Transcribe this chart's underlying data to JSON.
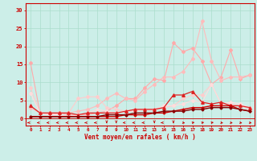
{
  "x": [
    0,
    1,
    2,
    3,
    4,
    5,
    6,
    7,
    8,
    9,
    10,
    11,
    12,
    13,
    14,
    15,
    16,
    17,
    18,
    19,
    20,
    21,
    22,
    23
  ],
  "background_color": "#cceee8",
  "grid_color": "#aaddcc",
  "xlabel": "Vent moyen/en rafales ( km/h )",
  "xlabel_color": "#cc0000",
  "tick_color": "#cc0000",
  "ylim": [
    -2,
    32
  ],
  "xlim": [
    -0.5,
    23.5
  ],
  "series": [
    {
      "y": [
        15.5,
        1.5,
        1.5,
        1.5,
        1.0,
        1.0,
        1.0,
        1.5,
        2.0,
        3.5,
        5.5,
        5.5,
        8.5,
        11.0,
        10.5,
        21.0,
        18.5,
        19.5,
        16.0,
        9.5,
        11.5,
        19.0,
        11.0,
        12.0
      ],
      "color": "#ffaaaa",
      "linewidth": 0.8,
      "marker": "D",
      "markersize": 2.0
    },
    {
      "y": [
        3.0,
        1.5,
        1.0,
        1.5,
        1.5,
        2.0,
        2.5,
        3.5,
        5.5,
        7.0,
        5.5,
        5.0,
        7.5,
        9.5,
        11.5,
        11.5,
        13.0,
        16.5,
        27.0,
        16.0,
        10.5,
        11.5,
        11.5,
        12.0
      ],
      "color": "#ffbbbb",
      "linewidth": 0.8,
      "marker": "D",
      "markersize": 2.0
    },
    {
      "y": [
        8.5,
        1.5,
        1.0,
        1.5,
        1.5,
        5.5,
        6.0,
        6.0,
        3.0,
        2.5,
        2.0,
        2.5,
        2.5,
        2.5,
        3.0,
        3.5,
        5.5,
        6.5,
        6.5,
        9.5,
        4.0,
        4.0,
        3.5,
        2.5
      ],
      "color": "#ffcccc",
      "linewidth": 0.8,
      "marker": "D",
      "markersize": 2.0
    },
    {
      "y": [
        7.0,
        1.5,
        1.0,
        1.0,
        0.5,
        1.0,
        1.5,
        2.5,
        2.0,
        1.5,
        2.0,
        2.0,
        2.5,
        2.5,
        3.5,
        3.5,
        4.0,
        5.0,
        4.5,
        9.5,
        4.0,
        4.5,
        4.0,
        3.0
      ],
      "color": "#ffdddd",
      "linewidth": 0.8,
      "marker": "D",
      "markersize": 2.0
    },
    {
      "y": [
        3.5,
        1.5,
        1.5,
        1.5,
        1.5,
        1.0,
        1.5,
        1.5,
        1.5,
        1.5,
        2.0,
        2.5,
        2.5,
        2.5,
        3.0,
        6.5,
        6.5,
        7.5,
        4.5,
        4.0,
        4.5,
        3.5,
        3.5,
        3.0
      ],
      "color": "#dd2222",
      "linewidth": 0.9,
      "marker": "^",
      "markersize": 2.5
    },
    {
      "y": [
        0.5,
        0.5,
        0.5,
        0.5,
        0.5,
        0.5,
        0.5,
        0.5,
        0.5,
        0.5,
        1.0,
        1.0,
        1.0,
        1.5,
        1.5,
        2.0,
        2.5,
        3.0,
        3.0,
        3.5,
        3.5,
        3.5,
        2.5,
        2.0
      ],
      "color": "#cc0000",
      "linewidth": 1.0,
      "marker": "D",
      "markersize": 1.5
    },
    {
      "y": [
        0.5,
        0.5,
        0.5,
        0.5,
        0.5,
        0.5,
        0.5,
        0.5,
        1.0,
        1.0,
        1.0,
        1.5,
        1.5,
        1.5,
        2.0,
        2.0,
        2.0,
        2.5,
        2.5,
        3.0,
        3.0,
        3.0,
        2.5,
        2.0
      ],
      "color": "#880000",
      "linewidth": 1.0,
      "marker": "D",
      "markersize": 1.5
    }
  ],
  "yticks": [
    0,
    5,
    10,
    15,
    20,
    25,
    30
  ],
  "wind_angles": [
    180,
    180,
    180,
    180,
    180,
    180,
    180,
    180,
    270,
    270,
    180,
    180,
    180,
    270,
    180,
    270,
    315,
    45,
    45,
    45,
    315,
    315,
    315,
    315
  ]
}
